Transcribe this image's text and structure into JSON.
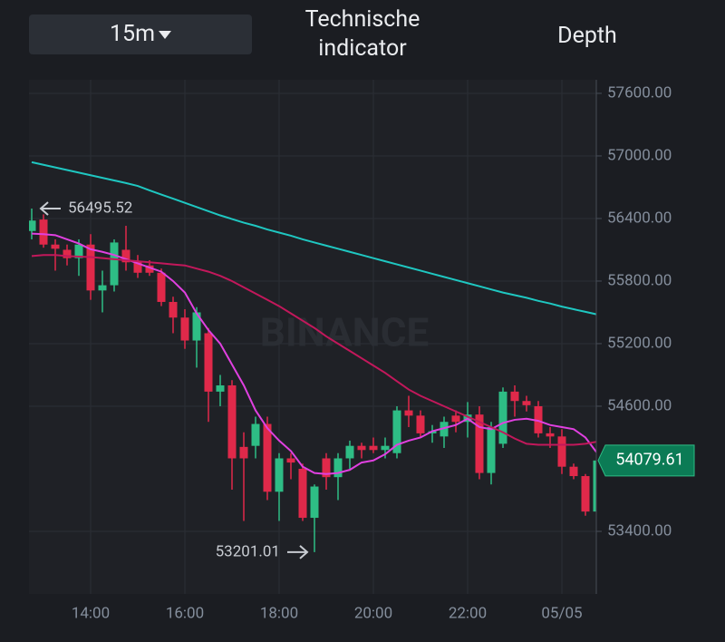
{
  "toolbar": {
    "timeframe": "15m",
    "tabs": [
      "Technische indicator",
      "Depth"
    ]
  },
  "chart_data": {
    "type": "candlestick",
    "watermark": "BINANCE",
    "categories": [
      null,
      null,
      null,
      null,
      null,
      "14:00",
      null,
      null,
      null,
      null,
      null,
      null,
      null,
      "16:00",
      null,
      null,
      null,
      null,
      null,
      null,
      null,
      "18:00",
      null,
      null,
      null,
      null,
      null,
      null,
      null,
      "20:00",
      null,
      null,
      null,
      null,
      null,
      null,
      null,
      "22:00",
      null,
      null,
      null,
      null,
      null,
      null,
      null,
      "05/05",
      null,
      null,
      null
    ],
    "ohlc": {
      "open": [
        56280,
        56390,
        56150,
        56100,
        56020,
        56150,
        55710,
        55760,
        56100,
        55990,
        55950,
        55880,
        55600,
        55450,
        55230,
        55300,
        54740,
        54800,
        54210,
        54220,
        54430,
        53780,
        54100,
        54000,
        53530,
        54100,
        53920,
        54100,
        54220,
        54220,
        54180,
        54150,
        54560,
        54510,
        54340,
        54310,
        54510,
        54450,
        54520,
        53960,
        54240,
        54740,
        54650,
        54600,
        54340,
        54310,
        54020,
        53930,
        53590
      ],
      "high": [
        56495.52,
        56440,
        56200,
        56150,
        56200,
        56250,
        55900,
        56200,
        56330,
        56050,
        56000,
        55920,
        55650,
        55530,
        55550,
        55350,
        54900,
        54850,
        54350,
        54500,
        54500,
        54150,
        54150,
        54050,
        53850,
        54150,
        54150,
        54270,
        54250,
        54300,
        54300,
        54600,
        54700,
        54560,
        54420,
        54500,
        54560,
        54640,
        54600,
        54450,
        54780,
        54800,
        54700,
        54650,
        54400,
        54380,
        54050,
        53950,
        54100
      ],
      "low": [
        56200,
        56120,
        55900,
        55950,
        55850,
        55620,
        55500,
        55700,
        55900,
        55830,
        55850,
        55560,
        55300,
        55150,
        54970,
        54450,
        54600,
        53800,
        53500,
        54100,
        53700,
        53500,
        53900,
        53500,
        53201.01,
        53800,
        53700,
        54000,
        54100,
        54150,
        54100,
        54100,
        54400,
        54300,
        54250,
        54200,
        54350,
        54300,
        53900,
        53850,
        54200,
        54500,
        54550,
        54300,
        54200,
        53950,
        53900,
        53550,
        53500
      ],
      "close": [
        56380,
        56150,
        56110,
        56020,
        56150,
        55710,
        55760,
        56170,
        55980,
        55880,
        55880,
        55600,
        55450,
        55230,
        55500,
        54740,
        54800,
        54100,
        54100,
        54430,
        53780,
        54100,
        54060,
        53530,
        53830,
        53920,
        54100,
        54220,
        54180,
        54180,
        54220,
        54560,
        54510,
        54340,
        54360,
        54450,
        54450,
        54520,
        53960,
        54400,
        54740,
        54650,
        54610,
        54340,
        54310,
        54020,
        53930,
        53590,
        54079.61
      ]
    },
    "up_color": "#2ebd85",
    "down_color": "#e0294a",
    "lines": [
      {
        "color": "#e040e0",
        "values": [
          56255,
          56250,
          56240,
          56200,
          56160,
          56105,
          56080,
          56050,
          56010,
          55970,
          55930,
          55890,
          55800,
          55690,
          55490,
          55330,
          55200,
          55000,
          54800,
          54560,
          54390,
          54270,
          54170,
          54020,
          53960,
          53950,
          53960,
          53990,
          54060,
          54080,
          54140,
          54230,
          54270,
          54300,
          54360,
          54390,
          54420,
          54480,
          54400,
          54380,
          54440,
          54470,
          54480,
          54460,
          54420,
          54400,
          54380,
          54300,
          54150
        ]
      },
      {
        "color": "#c2185b",
        "values": [
          56040,
          56050,
          56050,
          56040,
          56035,
          56030,
          56020,
          56010,
          56000,
          55990,
          55980,
          55970,
          55960,
          55950,
          55920,
          55890,
          55850,
          55800,
          55740,
          55680,
          55620,
          55560,
          55490,
          55420,
          55350,
          55270,
          55200,
          55130,
          55060,
          54990,
          54920,
          54840,
          54760,
          54700,
          54650,
          54600,
          54550,
          54500,
          54450,
          54400,
          54350,
          54290,
          54240,
          54230,
          54230,
          54230,
          54230,
          54240,
          54260
        ]
      },
      {
        "color": "#1fc7c1",
        "values": [
          56940,
          56915,
          56890,
          56865,
          56840,
          56815,
          56790,
          56765,
          56740,
          56712,
          56670,
          56630,
          56590,
          56550,
          56510,
          56470,
          56430,
          56395,
          56360,
          56330,
          56295,
          56265,
          56235,
          56200,
          56170,
          56140,
          56110,
          56080,
          56050,
          56020,
          55990,
          55960,
          55930,
          55900,
          55870,
          55840,
          55810,
          55780,
          55750,
          55720,
          55690,
          55665,
          55640,
          55610,
          55585,
          55555,
          55530,
          55505,
          55480
        ]
      }
    ],
    "ylim": [
      52800,
      57730
    ],
    "yticks": [
      {
        "value": 57600,
        "label": "57600.00"
      },
      {
        "value": 57000,
        "label": "57000.00"
      },
      {
        "value": 56400,
        "label": "56400.00"
      },
      {
        "value": 55800,
        "label": "55800.00"
      },
      {
        "value": 55200,
        "label": "55200.00"
      },
      {
        "value": 54600,
        "label": "54600.00"
      },
      {
        "value": 53400,
        "label": "53400.00"
      }
    ],
    "grid": true
  }
}
